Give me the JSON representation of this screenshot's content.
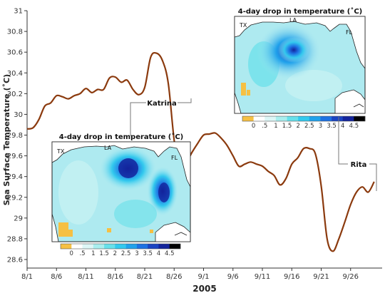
{
  "chart_data": {
    "type": "line",
    "xlabel": "2005",
    "ylabel": "Sea Surface Temperature (˚C)",
    "ylim": [
      28.6,
      31.0
    ],
    "yticks": [
      "31",
      "30.8",
      "30.6",
      "30.4",
      "30.2",
      "30",
      "29.8",
      "29.6",
      "29.4",
      "29.2",
      "29",
      "28.8",
      "28.6"
    ],
    "xticks": [
      "8/1",
      "8/6",
      "8/11",
      "8/16",
      "8/21",
      "8/26",
      "9/1",
      "9/6",
      "9/11",
      "9/16",
      "9/21",
      "9/26"
    ],
    "series": [
      {
        "color": "#8B3A0E",
        "x": [
          1,
          2,
          3,
          4,
          5,
          6,
          7,
          8,
          9,
          10,
          11,
          12,
          13,
          14,
          15,
          16,
          17,
          18,
          19,
          20,
          21,
          22,
          23,
          24,
          25,
          26,
          27,
          28,
          29,
          30,
          31,
          32,
          33,
          34,
          35,
          36,
          37,
          38,
          39,
          40,
          41,
          42,
          43,
          44,
          45,
          46,
          47,
          48,
          49,
          50,
          51,
          52,
          53,
          54,
          55,
          56,
          57,
          58,
          59,
          60
        ],
        "y": [
          29.86,
          29.87,
          29.95,
          30.08,
          30.11,
          30.18,
          30.17,
          30.15,
          30.18,
          30.2,
          30.25,
          30.21,
          30.24,
          30.24,
          30.35,
          30.36,
          30.31,
          30.33,
          30.24,
          30.19,
          30.26,
          30.55,
          30.59,
          30.52,
          30.3,
          29.75,
          29.42,
          29.52,
          29.63,
          29.72,
          29.8,
          29.81,
          29.82,
          29.77,
          29.7,
          29.6,
          29.5,
          29.52,
          29.54,
          29.52,
          29.5,
          29.45,
          29.41,
          29.32,
          29.38,
          29.52,
          29.58,
          29.67,
          29.67,
          29.62,
          29.31,
          28.8,
          28.68,
          28.8,
          28.96,
          29.13,
          29.25,
          29.3,
          29.25,
          29.35
        ]
      }
    ],
    "annotations": [
      {
        "label": "Katrina"
      },
      {
        "label": "Rita"
      }
    ]
  },
  "insets": [
    {
      "title": "4-day drop in temperature (˚C)",
      "labels": {
        "tx": "TX",
        "la": "LA",
        "fl": "FL"
      },
      "colorbar_ticks": [
        "0",
        ".5",
        "1",
        "1.5",
        "2",
        "2.5",
        "3",
        "3.5",
        "4",
        "4.5"
      ]
    },
    {
      "title": "4-day drop in temperature (˚C)",
      "labels": {
        "tx": "TX",
        "la": "LA",
        "fl": "FL"
      },
      "colorbar_ticks": [
        "0",
        ".5",
        "1",
        "1.5",
        "2",
        "2.5",
        "3",
        "3.5",
        "4",
        "4.5"
      ]
    }
  ],
  "colorbar_colors": [
    "#F6C043",
    "#FFFFFF",
    "#DDF6F6",
    "#A9EEEE",
    "#67E0EA",
    "#33C9EE",
    "#21A2EB",
    "#1E72E3",
    "#1B44C2",
    "#13239B",
    "#000000"
  ],
  "map_colors": {
    "ocean_base": "#AEEAF0",
    "land": "#FFFFFF",
    "coast": "#222222",
    "warm": "#F6C043"
  }
}
